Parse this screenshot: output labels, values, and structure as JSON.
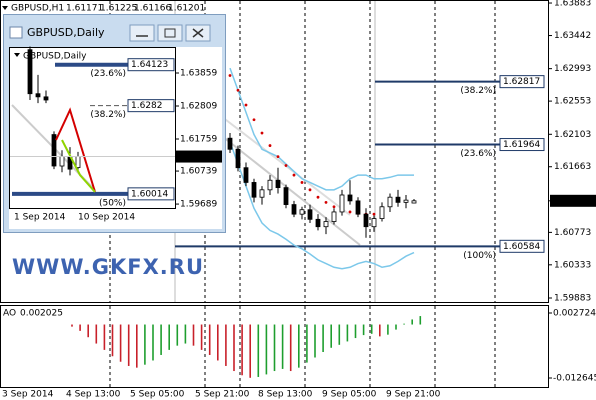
{
  "window_title": "GBPUSD,Daily",
  "watermark": "WWW.GKFX.RU",
  "chart_data": [
    {
      "type": "candlestick",
      "title": "GBPUSD,H1",
      "header_values": [
        1.61171,
        1.61225,
        1.61166,
        1.61201
      ],
      "open": [
        1.6205,
        1.619,
        1.6165,
        1.6145,
        1.6125,
        1.6135,
        1.6148,
        1.6138,
        1.6115,
        1.6102,
        1.6108,
        1.6095,
        1.6085,
        1.6092,
        1.6105,
        1.6128,
        1.612,
        1.6102,
        1.6085,
        1.6096,
        1.6112,
        1.6125,
        1.6118,
        1.61171
      ],
      "high": [
        1.6212,
        1.6195,
        1.6172,
        1.615,
        1.614,
        1.6155,
        1.6165,
        1.6142,
        1.612,
        1.6112,
        1.6115,
        1.6102,
        1.6098,
        1.611,
        1.6135,
        1.6148,
        1.6125,
        1.611,
        1.61,
        1.6118,
        1.613,
        1.6135,
        1.6128,
        1.61225
      ],
      "low": [
        1.6185,
        1.616,
        1.614,
        1.6118,
        1.6115,
        1.6128,
        1.613,
        1.611,
        1.6098,
        1.6095,
        1.609,
        1.608,
        1.6075,
        1.6088,
        1.61,
        1.6115,
        1.6098,
        1.607,
        1.6078,
        1.6092,
        1.6105,
        1.6112,
        1.611,
        1.61166
      ],
      "close": [
        1.619,
        1.6165,
        1.6145,
        1.6125,
        1.6135,
        1.6148,
        1.6138,
        1.6115,
        1.6102,
        1.6108,
        1.6095,
        1.6085,
        1.6092,
        1.6105,
        1.6128,
        1.612,
        1.6102,
        1.6085,
        1.6096,
        1.6112,
        1.6125,
        1.6118,
        1.6121,
        1.61201
      ],
      "up_color": "#ffffff",
      "down_color": "#000000",
      "last_price": 1.61201,
      "ylim": [
        1.59856,
        1.63924
      ],
      "yticks": [
        1.63883,
        1.63442,
        1.62993,
        1.62553,
        1.62103,
        1.61663,
        1.60773,
        1.60333,
        1.59883
      ],
      "fib_levels": [
        {
          "value": 1.62817,
          "label": "(38.2%)"
        },
        {
          "value": 1.61964,
          "label": "(23.6%)"
        },
        {
          "value": 1.60584,
          "label": "(100%)"
        }
      ],
      "fib_color": "#1f3a68",
      "overlays": [
        {
          "style": "line",
          "color": "#7cc8ea",
          "values": [
            1.63,
            1.627,
            1.624,
            1.621,
            1.619,
            1.6185,
            1.618,
            1.617,
            1.616,
            1.615,
            1.6145,
            1.614,
            1.6135,
            1.6135,
            1.614,
            1.615,
            1.6155,
            1.6155,
            1.615,
            1.615,
            1.6152,
            1.6155,
            1.6155,
            1.6155
          ]
        },
        {
          "style": "line",
          "color": "#7cc8ea",
          "values": [
            1.62,
            1.617,
            1.614,
            1.611,
            1.609,
            1.608,
            1.6075,
            1.6068,
            1.606,
            1.6055,
            1.6048,
            1.604,
            1.6035,
            1.603,
            1.6028,
            1.603,
            1.6035,
            1.6038,
            1.6035,
            1.603,
            1.6032,
            1.6038,
            1.6045,
            1.605
          ]
        },
        {
          "style": "dots",
          "color": "#d40000",
          "values": [
            1.629,
            1.627,
            1.625,
            1.623,
            1.6212,
            1.6195,
            1.618,
            1.6168,
            1.6155,
            1.6145,
            1.6135,
            1.6125,
            1.6118,
            1.6112,
            1.6108,
            1.6105,
            1.6103,
            1.6102,
            1.6102,
            1.6104,
            null,
            null,
            null,
            null
          ]
        }
      ],
      "xlabels": [
        "3 Sep 2014",
        "4 Sep 13:00",
        "5 Sep 05:00",
        "5 Sep 21:00",
        "8 Sep 13:00",
        "9 Sep 05:00",
        "9 Sep 21:00"
      ]
    },
    {
      "type": "bar",
      "title": "AO",
      "current": 0.002025,
      "up_color": "#1e9e2e",
      "down_color": "#c8202a",
      "values": [
        -0.0005,
        -0.0015,
        -0.003,
        -0.0045,
        -0.006,
        -0.0075,
        -0.0088,
        -0.0098,
        -0.0102,
        -0.0095,
        -0.0085,
        -0.0072,
        -0.006,
        -0.005,
        -0.0045,
        -0.005,
        -0.006,
        -0.0072,
        -0.0085,
        -0.0098,
        -0.011,
        -0.012,
        -0.0126,
        -0.0124,
        -0.0118,
        -0.011,
        -0.0105,
        -0.011,
        -0.0102,
        -0.009,
        -0.0078,
        -0.0065,
        -0.0055,
        -0.0048,
        -0.004,
        -0.0032,
        -0.0025,
        -0.0022,
        -0.0028,
        -0.0024,
        -0.0012,
        0.0002,
        0.0012,
        0.002
      ],
      "ylim": [
        -0.01501,
        0.00438
      ],
      "yticks": [
        0.002724,
        -0.012645
      ]
    },
    {
      "type": "candlestick",
      "title": "GBPUSD,Daily",
      "open": [
        1.646,
        1.632,
        1.631,
        1.619,
        1.609,
        1.612,
        1.6085
      ],
      "high": [
        1.647,
        1.638,
        1.633,
        1.62,
        1.614,
        1.615,
        1.6135
      ],
      "low": [
        1.63,
        1.629,
        1.629,
        1.608,
        1.607,
        1.606,
        1.607
      ],
      "close": [
        1.632,
        1.631,
        1.63,
        1.609,
        1.612,
        1.608,
        1.612
      ],
      "up_color": "#ffffff",
      "down_color": "#000000",
      "last_price": 1.61201,
      "ylim": [
        1.59564,
        1.64654
      ],
      "yticks": [
        1.63859,
        1.62809,
        1.61759,
        1.60739,
        1.59689
      ],
      "fib_levels": [
        {
          "value": 1.64123,
          "label": "(23.6%)",
          "style": "thick"
        },
        {
          "value": 1.6282,
          "label": "(38.2%)",
          "style": "dashed"
        },
        {
          "value": 1.60014,
          "label": "(50%)",
          "style": "thick"
        }
      ],
      "fib_color": "#1f3a68",
      "xlabels": [
        "1 Sep 2014",
        "10 Sep 2014"
      ]
    }
  ]
}
